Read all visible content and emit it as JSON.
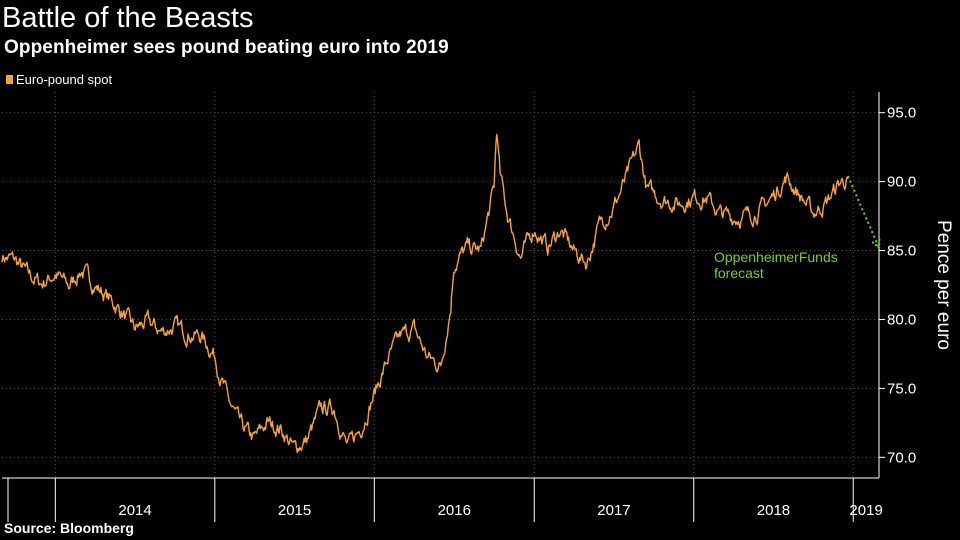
{
  "header": {
    "title": "Battle of the Beasts",
    "subtitle": "Oppenheimer sees pound beating euro into 2019"
  },
  "footer": {
    "source": "Source: Bloomberg"
  },
  "colors": {
    "background": "#000000",
    "series": "#f4a240",
    "forecast": "#6fd12a",
    "grid": "#555555",
    "axis": "#ffffff"
  },
  "chart_data": {
    "type": "line",
    "legend": [
      "Euro-pound spot"
    ],
    "legend_position": "top-left",
    "ylabel": "Pence per euro",
    "y_axis_side": "right",
    "ylim": [
      68.5,
      96.5
    ],
    "yticks": [
      "70.0",
      "75.0",
      "80.0",
      "85.0",
      "90.0",
      "95.0"
    ],
    "x_range": [
      "2013-09-01",
      "2019-03-01"
    ],
    "xtick_labels": [
      "2014",
      "2015",
      "2016",
      "2017",
      "2018",
      "2019"
    ],
    "xtick_dividers": [
      "2014-01-01",
      "2015-01-01",
      "2016-01-01",
      "2017-01-01",
      "2018-01-01",
      "2019-01-01"
    ],
    "grid": true,
    "series": [
      {
        "name": "Euro-pound spot",
        "points": [
          [
            "2013-09-01",
            84.6
          ],
          [
            "2013-10-01",
            84.3
          ],
          [
            "2013-11-01",
            83.2
          ],
          [
            "2013-12-01",
            82.6
          ],
          [
            "2014-01-01",
            83.3
          ],
          [
            "2014-02-01",
            82.4
          ],
          [
            "2014-03-01",
            83.6
          ],
          [
            "2014-04-01",
            82.5
          ],
          [
            "2014-05-01",
            81.6
          ],
          [
            "2014-06-01",
            80.6
          ],
          [
            "2014-07-01",
            79.3
          ],
          [
            "2014-08-01",
            79.8
          ],
          [
            "2014-09-01",
            79.1
          ],
          [
            "2014-10-01",
            79.5
          ],
          [
            "2014-11-01",
            79.0
          ],
          [
            "2014-12-01",
            78.8
          ],
          [
            "2015-01-01",
            77.4
          ],
          [
            "2015-01-15",
            75.8
          ],
          [
            "2015-02-01",
            74.1
          ],
          [
            "2015-03-01",
            72.3
          ],
          [
            "2015-04-01",
            71.3
          ],
          [
            "2015-05-01",
            72.5
          ],
          [
            "2015-06-01",
            72.1
          ],
          [
            "2015-07-01",
            70.6
          ],
          [
            "2015-08-01",
            71.3
          ],
          [
            "2015-09-01",
            73.5
          ],
          [
            "2015-10-01",
            73.6
          ],
          [
            "2015-11-01",
            70.7
          ],
          [
            "2015-12-01",
            72.1
          ],
          [
            "2016-01-01",
            74.6
          ],
          [
            "2016-02-01",
            77.1
          ],
          [
            "2016-03-01",
            78.8
          ],
          [
            "2016-04-01",
            79.3
          ],
          [
            "2016-05-01",
            77.3
          ],
          [
            "2016-06-01",
            76.6
          ],
          [
            "2016-06-24",
            81.0
          ],
          [
            "2016-07-01",
            84.0
          ],
          [
            "2016-08-01",
            85.2
          ],
          [
            "2016-09-01",
            85.0
          ],
          [
            "2016-10-01",
            89.5
          ],
          [
            "2016-10-07",
            93.8
          ],
          [
            "2016-10-15",
            90.4
          ],
          [
            "2016-11-01",
            87.6
          ],
          [
            "2016-12-01",
            84.5
          ],
          [
            "2017-01-01",
            86.6
          ],
          [
            "2017-02-01",
            85.2
          ],
          [
            "2017-03-01",
            86.5
          ],
          [
            "2017-04-01",
            85.0
          ],
          [
            "2017-05-01",
            84.1
          ],
          [
            "2017-06-01",
            87.0
          ],
          [
            "2017-07-01",
            88.1
          ],
          [
            "2017-08-01",
            90.3
          ],
          [
            "2017-08-29",
            92.6
          ],
          [
            "2017-09-15",
            89.5
          ],
          [
            "2017-10-01",
            89.1
          ],
          [
            "2017-11-01",
            88.6
          ],
          [
            "2017-12-01",
            88.4
          ],
          [
            "2018-01-01",
            88.9
          ],
          [
            "2018-02-01",
            88.8
          ],
          [
            "2018-03-01",
            87.7
          ],
          [
            "2018-04-01",
            87.4
          ],
          [
            "2018-05-01",
            87.5
          ],
          [
            "2018-06-01",
            87.9
          ],
          [
            "2018-07-01",
            88.9
          ],
          [
            "2018-08-01",
            90.3
          ],
          [
            "2018-09-01",
            89.0
          ],
          [
            "2018-10-01",
            87.7
          ],
          [
            "2018-11-01",
            88.5
          ],
          [
            "2018-12-01",
            89.9
          ],
          [
            "2018-12-20",
            90.2
          ]
        ]
      },
      {
        "name": "OppenheimerFunds forecast",
        "dashed": true,
        "points": [
          [
            "2018-12-20",
            90.4
          ],
          [
            "2019-03-01",
            85.2
          ]
        ]
      }
    ],
    "annotations": [
      {
        "text": "OppenheimerFunds",
        "color": "#6fd12a"
      },
      {
        "text": "forecast",
        "color": "#6fd12a"
      }
    ]
  }
}
